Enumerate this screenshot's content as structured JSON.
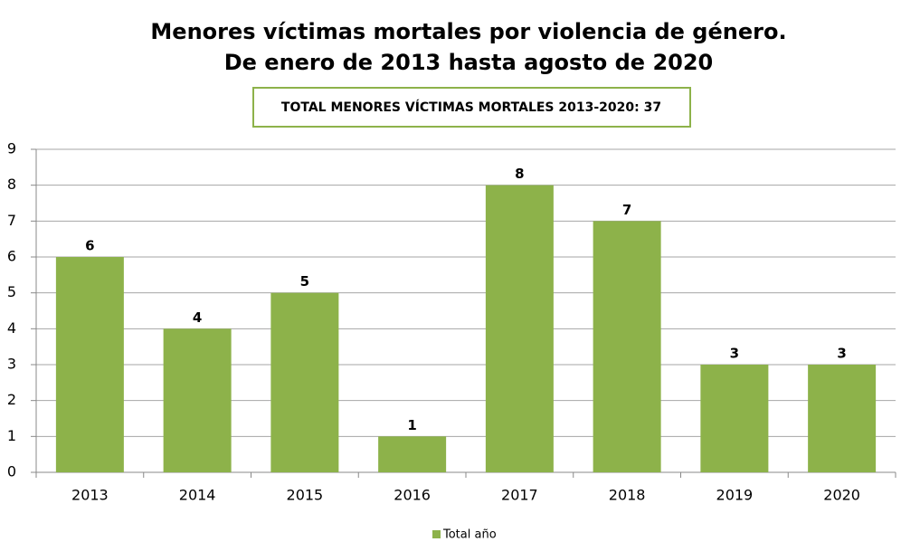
{
  "chart_data": {
    "type": "bar",
    "title": [
      "Menores víctimas mortales por violencia de género.",
      "De enero de 2013 hasta agosto de 2020"
    ],
    "annotation": "TOTAL MENORES VÍCTIMAS MORTALES 2013-2020: 37",
    "categories": [
      "2013",
      "2014",
      "2015",
      "2016",
      "2017",
      "2018",
      "2019",
      "2020"
    ],
    "series": [
      {
        "name": "Total año",
        "color": "#8db24a",
        "values": [
          6,
          4,
          5,
          1,
          8,
          7,
          3,
          3
        ]
      }
    ],
    "ylim": [
      0,
      9
    ],
    "yticks": [
      0,
      1,
      2,
      3,
      4,
      5,
      6,
      7,
      8,
      9
    ],
    "grid": true,
    "legend": "bottom"
  }
}
